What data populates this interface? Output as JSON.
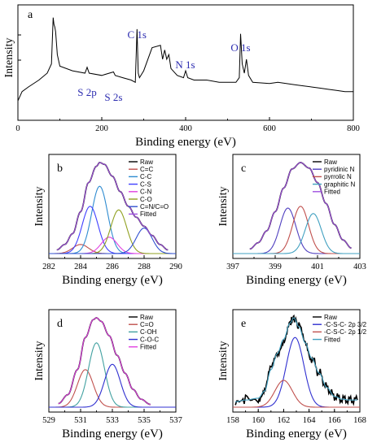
{
  "chart_data": [
    {
      "panel": "a",
      "type": "line",
      "xlabel": "Binding energy (eV)",
      "ylabel": "Intensity",
      "xlim": [
        0,
        800
      ],
      "xticks": [
        "0",
        "200",
        "400",
        "600",
        "800"
      ],
      "annotations": [
        {
          "text": "S 2p",
          "x": 165
        },
        {
          "text": "S 2s",
          "x": 228
        },
        {
          "text": "C 1s",
          "x": 284
        },
        {
          "text": "N 1s",
          "x": 399
        },
        {
          "text": "O 1s",
          "x": 531
        }
      ],
      "series": [
        {
          "color": "#000000",
          "x": [
            0,
            10,
            25,
            50,
            70,
            80,
            84,
            86,
            88,
            90,
            94,
            100,
            130,
            160,
            165,
            170,
            200,
            228,
            232,
            250,
            270,
            280,
            284,
            287,
            290,
            300,
            320,
            340,
            345,
            350,
            355,
            360,
            365,
            380,
            395,
            400,
            405,
            420,
            450,
            480,
            500,
            520,
            528,
            531,
            535,
            540,
            545,
            550,
            560,
            600,
            620,
            640,
            660,
            680,
            700,
            720,
            740,
            760,
            780,
            800
          ],
          "y": [
            0.62,
            0.66,
            0.68,
            0.71,
            0.74,
            0.78,
            0.98,
            0.95,
            0.94,
            0.92,
            0.82,
            0.77,
            0.75,
            0.74,
            0.765,
            0.74,
            0.73,
            0.745,
            0.73,
            0.72,
            0.71,
            0.7,
            0.93,
            0.74,
            0.72,
            0.75,
            0.85,
            0.86,
            0.8,
            0.84,
            0.8,
            0.82,
            0.76,
            0.73,
            0.72,
            0.75,
            0.72,
            0.71,
            0.71,
            0.7,
            0.7,
            0.7,
            0.72,
            0.91,
            0.78,
            0.74,
            0.8,
            0.73,
            0.7,
            0.695,
            0.7,
            0.695,
            0.69,
            0.685,
            0.68,
            0.675,
            0.67,
            0.665,
            0.66,
            0.66
          ]
        }
      ]
    },
    {
      "panel": "b",
      "type": "line",
      "xlabel": "Binding energy (eV)",
      "ylabel": "Intensity",
      "xlim": [
        282,
        290
      ],
      "xticks": [
        "282",
        "284",
        "286",
        "288",
        "290"
      ],
      "legend": [
        "Raw",
        "C=C",
        "C-C",
        "C-S",
        "C-N",
        "C-O",
        "C=N/C=O",
        "Fitted"
      ],
      "colors": [
        "#000000",
        "#c0504d",
        "#2e8bd0",
        "#4040ff",
        "#e040e0",
        "#90a020",
        "#3050d0",
        "#a050e0"
      ],
      "series": [
        {
          "name": "Raw",
          "x": [
            282.5,
            283,
            283.5,
            284,
            284.5,
            285,
            285.2,
            285.5,
            286,
            286.5,
            287,
            287.5,
            288,
            288.5,
            289,
            289.5
          ],
          "y": [
            0.04,
            0.1,
            0.22,
            0.46,
            0.78,
            0.96,
            1.0,
            0.98,
            0.85,
            0.68,
            0.52,
            0.4,
            0.3,
            0.2,
            0.1,
            0.04
          ]
        },
        {
          "name": "C=C",
          "center": 284.0,
          "height": 0.1
        },
        {
          "name": "C-C",
          "center": 285.2,
          "height": 0.74
        },
        {
          "name": "C-S",
          "center": 284.6,
          "height": 0.52
        },
        {
          "name": "C-N",
          "center": 285.8,
          "height": 0.18
        },
        {
          "name": "C-O",
          "center": 286.4,
          "height": 0.48
        },
        {
          "name": "C=N/C=O",
          "center": 288.0,
          "height": 0.28
        },
        {
          "name": "Fitted",
          "x": [
            282.5,
            283,
            283.5,
            284,
            284.5,
            285,
            285.2,
            285.5,
            286,
            286.5,
            287,
            287.5,
            288,
            288.5,
            289,
            289.5
          ],
          "y": [
            0.04,
            0.1,
            0.22,
            0.46,
            0.78,
            0.96,
            1.0,
            0.98,
            0.85,
            0.68,
            0.52,
            0.4,
            0.3,
            0.2,
            0.1,
            0.04
          ]
        }
      ]
    },
    {
      "panel": "c",
      "type": "line",
      "xlabel": "Binding energy (eV)",
      "ylabel": "Intensity",
      "xlim": [
        397,
        403
      ],
      "xticks": [
        "397",
        "399",
        "401",
        "403"
      ],
      "legend": [
        "Raw",
        "pyridinic N",
        "pyrrolic N",
        "graphitic N",
        "Fitted"
      ],
      "colors": [
        "#000000",
        "#5040c0",
        "#c0504d",
        "#40a0c0",
        "#a050e0"
      ],
      "series": [
        {
          "name": "Raw",
          "x": [
            397.8,
            398.2,
            398.6,
            399.0,
            399.4,
            399.8,
            400.2,
            400.6,
            401.0,
            401.4,
            401.8,
            402.2,
            402.6
          ],
          "y": [
            0.05,
            0.12,
            0.25,
            0.46,
            0.72,
            0.93,
            1.0,
            0.94,
            0.78,
            0.55,
            0.32,
            0.15,
            0.06
          ]
        },
        {
          "name": "pyridinic N",
          "center": 399.6,
          "height": 0.5
        },
        {
          "name": "pyrrolic N",
          "center": 400.2,
          "height": 0.52
        },
        {
          "name": "graphitic N",
          "center": 400.8,
          "height": 0.44
        },
        {
          "name": "Fitted",
          "x": [
            397.8,
            398.2,
            398.6,
            399.0,
            399.4,
            399.8,
            400.2,
            400.6,
            401.0,
            401.4,
            401.8,
            402.2,
            402.6
          ],
          "y": [
            0.05,
            0.12,
            0.25,
            0.46,
            0.72,
            0.93,
            1.0,
            0.94,
            0.78,
            0.55,
            0.32,
            0.15,
            0.06
          ]
        }
      ]
    },
    {
      "panel": "d",
      "type": "line",
      "xlabel": "Binding energy (eV)",
      "ylabel": "Intensity",
      "xlim": [
        529,
        537
      ],
      "xticks": [
        "529",
        "531",
        "533",
        "535",
        "537"
      ],
      "legend": [
        "Raw",
        "C=O",
        "C-OH",
        "C-O-C",
        "Fitted"
      ],
      "colors": [
        "#000000",
        "#c0504d",
        "#40a0a0",
        "#3030d0",
        "#e040e0"
      ],
      "series": [
        {
          "name": "Raw",
          "x": [
            529.6,
            530.2,
            530.8,
            531.3,
            531.8,
            532.0,
            532.3,
            532.8,
            533.3,
            533.8,
            534.3,
            534.8,
            535.4
          ],
          "y": [
            0.04,
            0.14,
            0.42,
            0.78,
            0.98,
            1.0,
            0.96,
            0.8,
            0.58,
            0.38,
            0.2,
            0.09,
            0.03
          ]
        },
        {
          "name": "C=O",
          "center": 531.3,
          "height": 0.42
        },
        {
          "name": "C-OH",
          "center": 532.0,
          "height": 0.72
        },
        {
          "name": "C-O-C",
          "center": 533.0,
          "height": 0.48
        },
        {
          "name": "Fitted",
          "x": [
            529.6,
            530.2,
            530.8,
            531.3,
            531.8,
            532.0,
            532.3,
            532.8,
            533.3,
            533.8,
            534.3,
            534.8,
            535.4
          ],
          "y": [
            0.04,
            0.14,
            0.42,
            0.78,
            0.98,
            1.0,
            0.96,
            0.8,
            0.58,
            0.38,
            0.2,
            0.09,
            0.03
          ]
        }
      ]
    },
    {
      "panel": "e",
      "type": "line",
      "xlabel": "Binding energy (eV)",
      "ylabel": "Intensity",
      "xlim": [
        158,
        168
      ],
      "xticks": [
        "158",
        "160",
        "162",
        "164",
        "166",
        "168"
      ],
      "legend": [
        "Raw",
        "-C-S-C- 2p 3/2",
        "-C-S-C- 2p 1/2",
        "Fitted"
      ],
      "colors": [
        "#000000",
        "#3030d0",
        "#c0504d",
        "#40a0c0"
      ],
      "series": [
        {
          "name": "Raw",
          "x": [
            158.2,
            159,
            160,
            160.5,
            161,
            161.5,
            162,
            162.5,
            162.8,
            163.2,
            163.7,
            164.2,
            164.8,
            165.4,
            166,
            166.6,
            167.2,
            167.8
          ],
          "y": [
            0.06,
            0.08,
            0.1,
            0.18,
            0.42,
            0.6,
            0.76,
            0.94,
            1.0,
            0.9,
            0.72,
            0.55,
            0.38,
            0.22,
            0.12,
            0.09,
            0.08,
            0.08
          ]
        },
        {
          "name": "-C-S-C- 2p 3/2",
          "center": 162.9,
          "height": 0.78
        },
        {
          "name": "-C-S-C- 2p 1/2",
          "center": 162.0,
          "height": 0.3
        },
        {
          "name": "Fitted",
          "x": [
            158.2,
            159,
            160,
            160.5,
            161,
            161.5,
            162,
            162.5,
            162.8,
            163.2,
            163.7,
            164.2,
            164.8,
            165.4,
            166,
            166.6,
            167.2,
            167.8
          ],
          "y": [
            0.06,
            0.08,
            0.1,
            0.18,
            0.42,
            0.6,
            0.76,
            0.94,
            1.0,
            0.9,
            0.72,
            0.55,
            0.38,
            0.22,
            0.12,
            0.09,
            0.08,
            0.08
          ]
        }
      ]
    }
  ]
}
